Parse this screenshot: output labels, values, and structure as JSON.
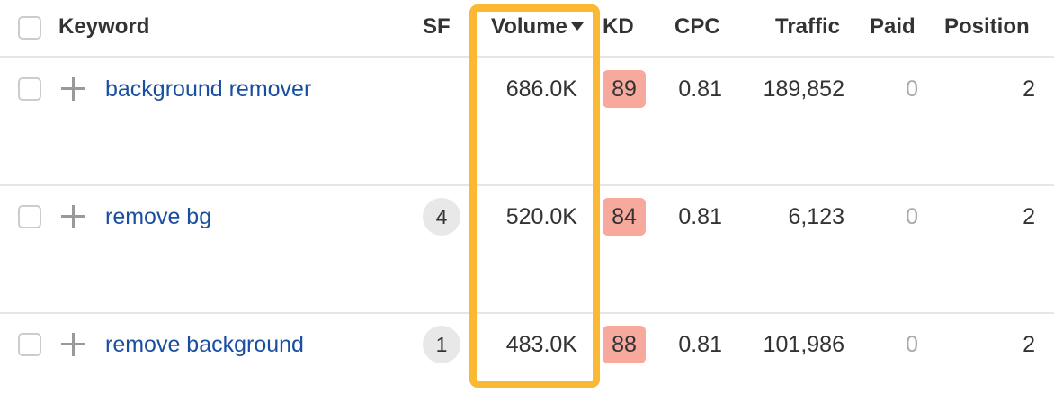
{
  "header": {
    "keyword": "Keyword",
    "sf": "SF",
    "volume": "Volume",
    "kd": "KD",
    "cpc": "CPC",
    "traffic": "Traffic",
    "paid": "Paid",
    "position": "Position"
  },
  "sort": {
    "column": "Volume",
    "direction": "descending"
  },
  "highlight_color": "#fbb832",
  "kd_badge_color": "#f7a99e",
  "rows": [
    {
      "keyword": "background remover",
      "sf": "",
      "volume": "686.0K",
      "kd": "89",
      "cpc": "0.81",
      "traffic": "189,852",
      "paid": "0",
      "position": "2"
    },
    {
      "keyword": "remove bg",
      "sf": "4",
      "volume": "520.0K",
      "kd": "84",
      "cpc": "0.81",
      "traffic": "6,123",
      "paid": "0",
      "position": "2"
    },
    {
      "keyword": "remove background",
      "sf": "1",
      "volume": "483.0K",
      "kd": "88",
      "cpc": "0.81",
      "traffic": "101,986",
      "paid": "0",
      "position": "2"
    }
  ]
}
